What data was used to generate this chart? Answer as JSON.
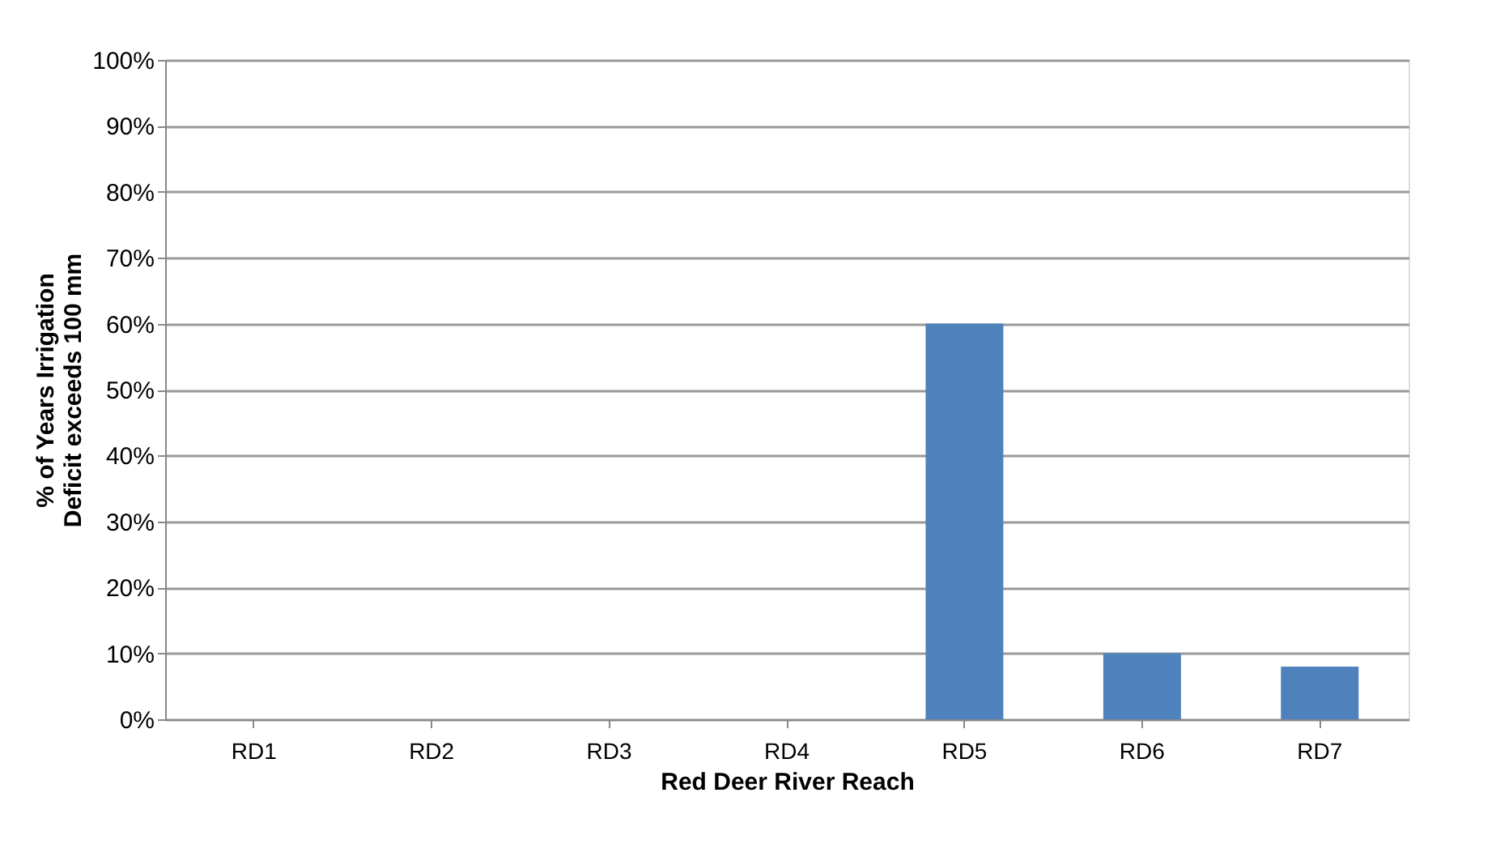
{
  "chart_data": {
    "type": "bar",
    "xlabel": "Red Deer River Reach",
    "ylabel": "% of Years Irrigation Deficit exceeds 100 mm",
    "categories": [
      "RD1",
      "RD2",
      "RD3",
      "RD4",
      "RD5",
      "RD6",
      "RD7"
    ],
    "values": [
      0,
      0,
      0,
      0,
      60,
      10,
      8
    ],
    "color": "#4f81bd",
    "ylim": [
      0,
      100
    ],
    "yticks": [
      {
        "value": 0,
        "label": "0%"
      },
      {
        "value": 10,
        "label": "10%"
      },
      {
        "value": 20,
        "label": "20%"
      },
      {
        "value": 30,
        "label": "30%"
      },
      {
        "value": 40,
        "label": "40%"
      },
      {
        "value": 50,
        "label": "50%"
      },
      {
        "value": 60,
        "label": "60%"
      },
      {
        "value": 70,
        "label": "70%"
      },
      {
        "value": 80,
        "label": "80%"
      },
      {
        "value": 90,
        "label": "90%"
      },
      {
        "value": 100,
        "label": "100%"
      }
    ],
    "grid": "y"
  }
}
